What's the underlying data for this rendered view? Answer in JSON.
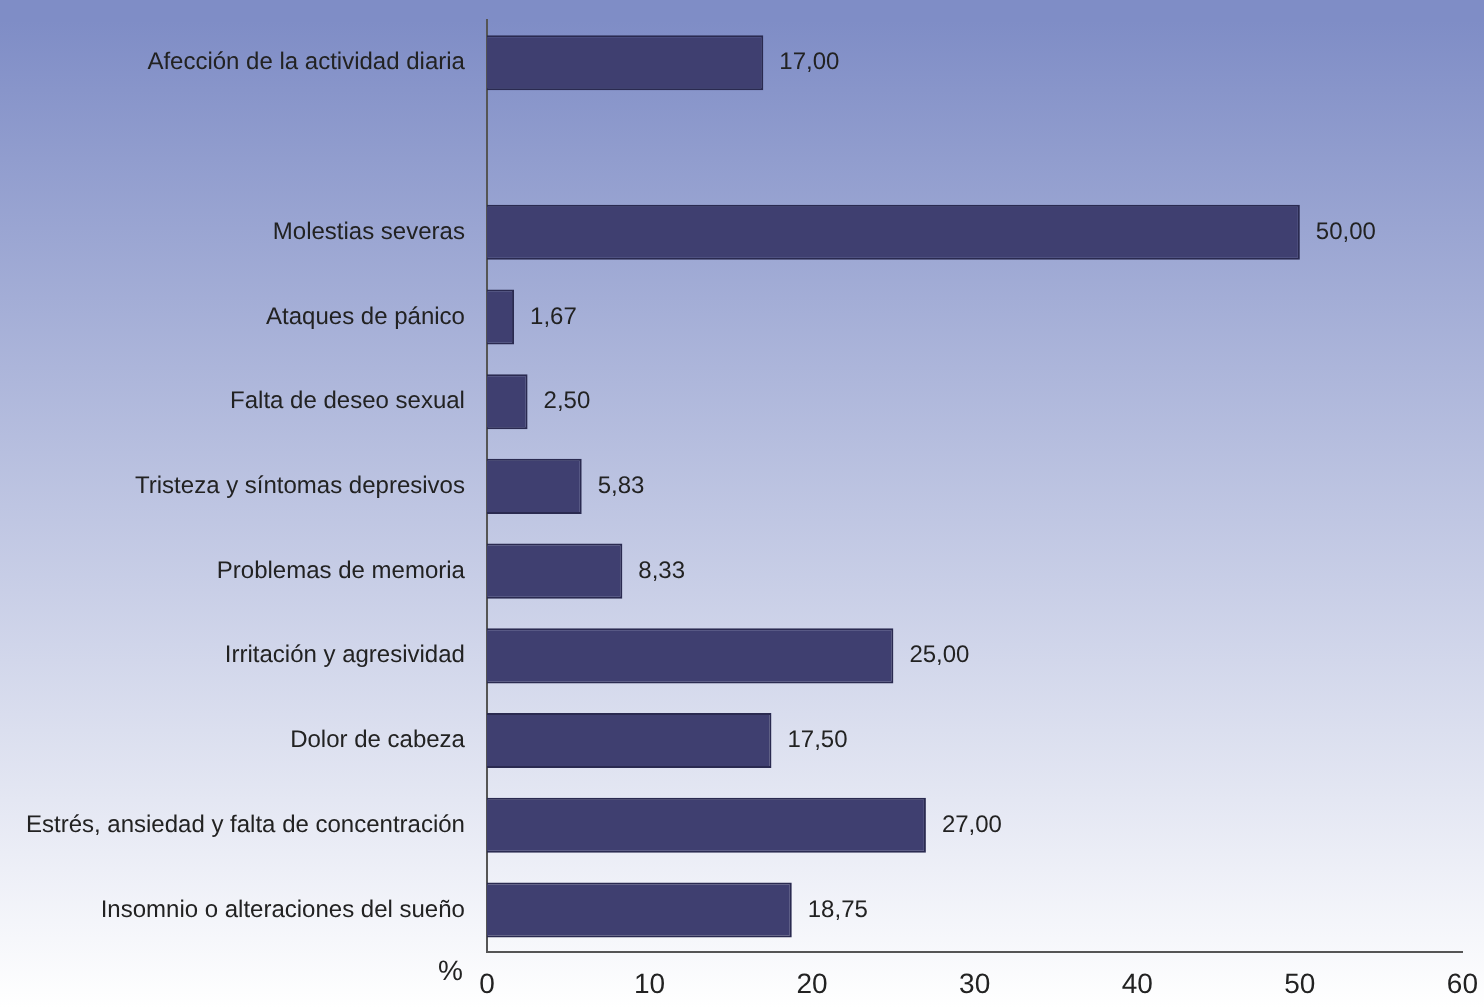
{
  "chart_data": {
    "type": "bar",
    "orientation": "horizontal",
    "xlabel": "%",
    "categories": [
      "Afección de la actividad diaria",
      null,
      "Molestias severas",
      "Ataques de pánico",
      "Falta de deseo sexual",
      "Tristeza y síntomas depresivos",
      "Problemas de memoria",
      "Irritación y agresividad",
      "Dolor de cabeza",
      "Estrés, ansiedad y falta de concentración",
      "Insomnio o alteraciones del sueño"
    ],
    "values": [
      17,
      null,
      50,
      1.67,
      2.5,
      5.83,
      8.33,
      25,
      17.5,
      27,
      18.75
    ],
    "value_labels": [
      "17,00",
      null,
      "50,00",
      "1,67",
      "2,50",
      "5,83",
      "8,33",
      "25,00",
      "17,50",
      "27,00",
      "18,75"
    ],
    "color": "#3f3f70",
    "xlim": [
      0,
      60
    ],
    "xticks": [
      0,
      10,
      20,
      30,
      40,
      50,
      60
    ],
    "grid": false,
    "legend": false
  }
}
